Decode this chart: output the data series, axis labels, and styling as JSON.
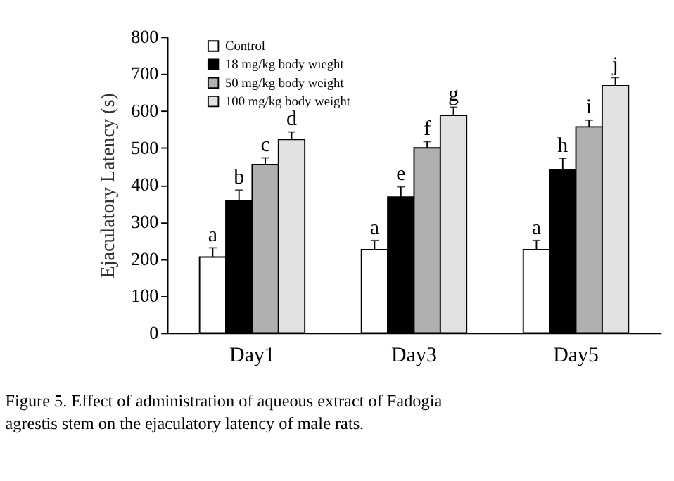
{
  "chart_data": {
    "type": "bar",
    "categories": [
      "Day1",
      "Day3",
      "Day5"
    ],
    "ylabel": "Ejaculatory Latency (s)",
    "ylim": [
      0,
      800
    ],
    "yticks": [
      0,
      100,
      200,
      300,
      400,
      500,
      600,
      700,
      800
    ],
    "grid": false,
    "legend": "top left",
    "series": [
      {
        "name": "Control",
        "color": "#ffffff",
        "values": [
          205,
          225,
          225
        ],
        "errors": [
          [
            205,
            230
          ],
          [
            225,
            250
          ],
          [
            225,
            250
          ]
        ],
        "value_labels": [
          "a",
          "a",
          "a"
        ]
      },
      {
        "name": "18 mg/kg body wieght",
        "color": "#000000",
        "values": [
          358,
          367,
          442
        ],
        "errors": [
          [
            358,
            386
          ],
          [
            367,
            395
          ],
          [
            442,
            472
          ]
        ],
        "value_labels": [
          "b",
          "e",
          "h"
        ]
      },
      {
        "name": "50 mg/kg body weight",
        "color": "#b0b0b0",
        "values": [
          455,
          500,
          557
        ],
        "errors": [
          [
            455,
            473
          ],
          [
            500,
            517
          ],
          [
            557,
            575
          ]
        ],
        "value_labels": [
          "c",
          "f",
          "i"
        ]
      },
      {
        "name": "100 mg/kg body weight",
        "color": "#e2e2e2",
        "values": [
          523,
          588,
          668
        ],
        "errors": [
          [
            523,
            543
          ],
          [
            588,
            610
          ],
          [
            668,
            690
          ]
        ],
        "value_labels": [
          "d",
          "g",
          "j"
        ]
      }
    ],
    "annotations": [
      "Figure 5. Effect of administration of aqueous extract of Fadogia agrestis stem on the ejaculatory latency of male rats."
    ]
  }
}
